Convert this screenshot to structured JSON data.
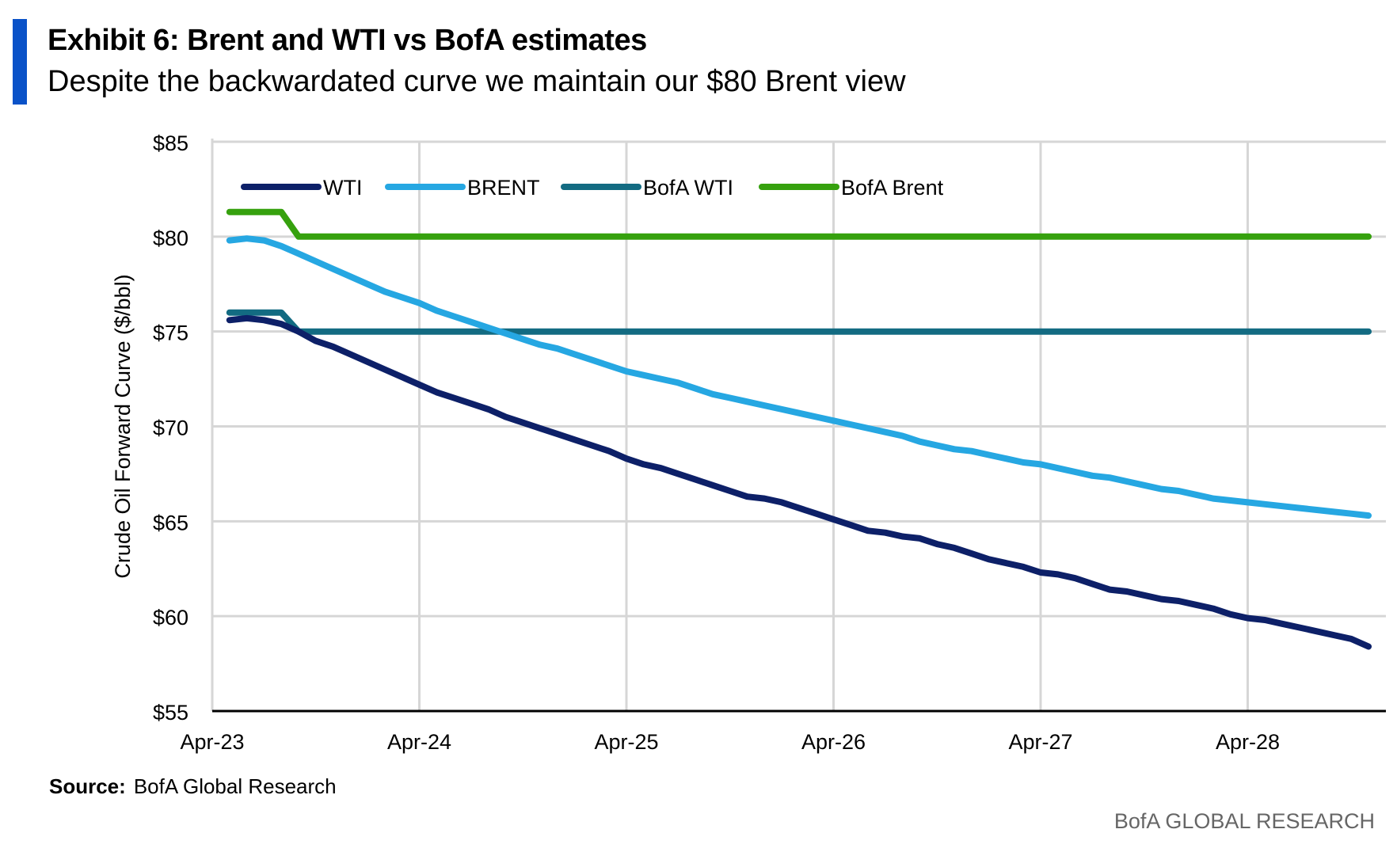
{
  "header": {
    "title": "Exhibit 6: Brent and WTI vs BofA estimates",
    "subtitle": "Despite the backwardated curve we maintain our $80 Brent view",
    "accent_color": "#0a52c8"
  },
  "footer": {
    "source_label": "Source:",
    "source_text": "BofA Global Research",
    "brand": "BofA GLOBAL RESEARCH"
  },
  "chart_data": {
    "type": "line",
    "title": "Exhibit 6: Brent and WTI vs BofA estimates",
    "subtitle": "Despite the backwardated curve we maintain our $80 Brent view",
    "xlabel": "",
    "ylabel": "Crude Oil Forward Curve ($/bbl)",
    "x_ticks": [
      "Apr-23",
      "Apr-24",
      "Apr-25",
      "Apr-26",
      "Apr-27",
      "Apr-28"
    ],
    "y_ticks": [
      "$55",
      "$60",
      "$65",
      "$70",
      "$75",
      "$80",
      "$85"
    ],
    "xlim": [
      "2023-04",
      "2028-11"
    ],
    "ylim": [
      55,
      85
    ],
    "grid": true,
    "legend_position": "top-left",
    "x": [
      "2023-05",
      "2023-06",
      "2023-07",
      "2023-08",
      "2023-09",
      "2023-10",
      "2023-11",
      "2023-12",
      "2024-01",
      "2024-02",
      "2024-03",
      "2024-04",
      "2024-05",
      "2024-06",
      "2024-07",
      "2024-08",
      "2024-09",
      "2024-10",
      "2024-11",
      "2024-12",
      "2025-01",
      "2025-02",
      "2025-03",
      "2025-04",
      "2025-05",
      "2025-06",
      "2025-07",
      "2025-08",
      "2025-09",
      "2025-10",
      "2025-11",
      "2025-12",
      "2026-01",
      "2026-02",
      "2026-03",
      "2026-04",
      "2026-05",
      "2026-06",
      "2026-07",
      "2026-08",
      "2026-09",
      "2026-10",
      "2026-11",
      "2026-12",
      "2027-01",
      "2027-02",
      "2027-03",
      "2027-04",
      "2027-05",
      "2027-06",
      "2027-07",
      "2027-08",
      "2027-09",
      "2027-10",
      "2027-11",
      "2027-12",
      "2028-01",
      "2028-02",
      "2028-03",
      "2028-04",
      "2028-05",
      "2028-06",
      "2028-07",
      "2028-08",
      "2028-09",
      "2028-10",
      "2028-11"
    ],
    "series": [
      {
        "name": "WTI",
        "color": "#0d2068",
        "values": [
          75.6,
          75.7,
          75.6,
          75.4,
          75.0,
          74.5,
          74.2,
          73.8,
          73.4,
          73.0,
          72.6,
          72.2,
          71.8,
          71.5,
          71.2,
          70.9,
          70.5,
          70.2,
          69.9,
          69.6,
          69.3,
          69.0,
          68.7,
          68.3,
          68.0,
          67.8,
          67.5,
          67.2,
          66.9,
          66.6,
          66.3,
          66.2,
          66.0,
          65.7,
          65.4,
          65.1,
          64.8,
          64.5,
          64.4,
          64.2,
          64.1,
          63.8,
          63.6,
          63.3,
          63.0,
          62.8,
          62.6,
          62.3,
          62.2,
          62.0,
          61.7,
          61.4,
          61.3,
          61.1,
          60.9,
          60.8,
          60.6,
          60.4,
          60.1,
          59.9,
          59.8,
          59.6,
          59.4,
          59.2,
          59.0,
          58.8,
          58.4
        ]
      },
      {
        "name": "BRENT",
        "color": "#26a7e2",
        "values": [
          79.8,
          79.9,
          79.8,
          79.5,
          79.1,
          78.7,
          78.3,
          77.9,
          77.5,
          77.1,
          76.8,
          76.5,
          76.1,
          75.8,
          75.5,
          75.2,
          74.9,
          74.6,
          74.3,
          74.1,
          73.8,
          73.5,
          73.2,
          72.9,
          72.7,
          72.5,
          72.3,
          72.0,
          71.7,
          71.5,
          71.3,
          71.1,
          70.9,
          70.7,
          70.5,
          70.3,
          70.1,
          69.9,
          69.7,
          69.5,
          69.2,
          69.0,
          68.8,
          68.7,
          68.5,
          68.3,
          68.1,
          68.0,
          67.8,
          67.6,
          67.4,
          67.3,
          67.1,
          66.9,
          66.7,
          66.6,
          66.4,
          66.2,
          66.1,
          66.0,
          65.9,
          65.8,
          65.7,
          65.6,
          65.5,
          65.4,
          65.3
        ]
      },
      {
        "name": "BofA WTI",
        "color": "#136b82",
        "values": [
          76,
          76,
          76,
          76,
          75,
          75,
          75,
          75,
          75,
          75,
          75,
          75,
          75,
          75,
          75,
          75,
          75,
          75,
          75,
          75,
          75,
          75,
          75,
          75,
          75,
          75,
          75,
          75,
          75,
          75,
          75,
          75,
          75,
          75,
          75,
          75,
          75,
          75,
          75,
          75,
          75,
          75,
          75,
          75,
          75,
          75,
          75,
          75,
          75,
          75,
          75,
          75,
          75,
          75,
          75,
          75,
          75,
          75,
          75,
          75,
          75,
          75,
          75,
          75,
          75,
          75,
          75
        ]
      },
      {
        "name": "BofA Brent",
        "color": "#36a10e",
        "values": [
          81.3,
          81.3,
          81.3,
          81.3,
          80,
          80,
          80,
          80,
          80,
          80,
          80,
          80,
          80,
          80,
          80,
          80,
          80,
          80,
          80,
          80,
          80,
          80,
          80,
          80,
          80,
          80,
          80,
          80,
          80,
          80,
          80,
          80,
          80,
          80,
          80,
          80,
          80,
          80,
          80,
          80,
          80,
          80,
          80,
          80,
          80,
          80,
          80,
          80,
          80,
          80,
          80,
          80,
          80,
          80,
          80,
          80,
          80,
          80,
          80,
          80,
          80,
          80,
          80,
          80,
          80,
          80,
          80
        ]
      }
    ]
  }
}
